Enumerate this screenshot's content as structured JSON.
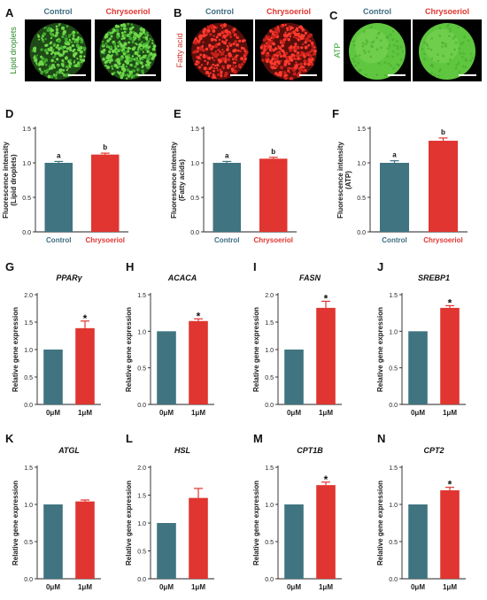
{
  "colors": {
    "control": "#3f7480",
    "treated": "#e03530",
    "lipid_text": "#2c8b2c",
    "fatty_text": "#d33a35",
    "atp_text": "#2ea02e",
    "group_blue": "#3d6d83"
  },
  "images": [
    {
      "letter": "A",
      "side_label": "Lipid droplets",
      "side_color_key": "lipid_text",
      "titles": [
        "Control",
        "Chrysoeriol"
      ],
      "stain": "green-dots"
    },
    {
      "letter": "B",
      "side_label": "Fatty acid",
      "side_color_key": "fatty_text",
      "titles": [
        "Control",
        "Chrysoeriol"
      ],
      "stain": "red-dots"
    },
    {
      "letter": "C",
      "side_label": "ATP",
      "side_color_key": "atp_text",
      "titles": [
        "Control",
        "Chrysoeriol"
      ],
      "stain": "green-smooth"
    }
  ],
  "chart_data": [
    {
      "letter": "D",
      "type": "bar",
      "ylabel": "Fluorescence intensity\n(Lipid droplets)",
      "ylim": [
        0,
        1.5
      ],
      "yticks": [
        "0.0",
        "0.5",
        "1.0",
        "1.5"
      ],
      "categories": [
        "Control",
        "Chrysoeriol"
      ],
      "values": [
        1.0,
        1.12
      ],
      "errors": [
        0.02,
        0.02
      ],
      "annotations": [
        "a",
        "b"
      ]
    },
    {
      "letter": "E",
      "type": "bar",
      "ylabel": "Fluorescence intensity\n(Fatty acids)",
      "ylim": [
        0,
        1.5
      ],
      "yticks": [
        "0.0",
        "0.5",
        "1.0",
        "1.5"
      ],
      "categories": [
        "Control",
        "Chrysoeriol"
      ],
      "values": [
        1.0,
        1.06
      ],
      "errors": [
        0.02,
        0.02
      ],
      "annotations": [
        "a",
        "b"
      ]
    },
    {
      "letter": "F",
      "type": "bar",
      "ylabel": "Fluorescence intensity\n(ATP)",
      "ylim": [
        0,
        1.5
      ],
      "yticks": [
        "0.0",
        "0.5",
        "1.0",
        "1.5"
      ],
      "categories": [
        "Control",
        "Chrysoeriol"
      ],
      "values": [
        1.0,
        1.32
      ],
      "errors": [
        0.03,
        0.04
      ],
      "annotations": [
        "a",
        "b"
      ]
    },
    {
      "letter": "G",
      "type": "bar",
      "title": "PPARγ",
      "ylabel": "Relative gene expression",
      "ylim": [
        0,
        2.0
      ],
      "yticks": [
        "0.0",
        "0.5",
        "1.0",
        "1.5",
        "2.0"
      ],
      "categories": [
        "0μM",
        "1μM"
      ],
      "values": [
        1.0,
        1.39
      ],
      "errors": [
        0,
        0.13
      ],
      "annotations": [
        "",
        "*"
      ]
    },
    {
      "letter": "H",
      "type": "bar",
      "title": "ACACA",
      "ylabel": "Relative gene expression",
      "ylim": [
        0,
        1.5
      ],
      "yticks": [
        "0.0",
        "0.5",
        "1.0",
        "1.5"
      ],
      "categories": [
        "0μM",
        "1μM"
      ],
      "values": [
        1.0,
        1.14
      ],
      "errors": [
        0,
        0.03
      ],
      "annotations": [
        "",
        "*"
      ]
    },
    {
      "letter": "I",
      "type": "bar",
      "title": "FASN",
      "ylabel": "Relative gene expression",
      "ylim": [
        0,
        2.0
      ],
      "yticks": [
        "0.0",
        "0.5",
        "1.0",
        "1.5",
        "2.0"
      ],
      "categories": [
        "0μM",
        "1μM"
      ],
      "values": [
        1.0,
        1.76
      ],
      "errors": [
        0,
        0.12
      ],
      "annotations": [
        "",
        "*"
      ]
    },
    {
      "letter": "J",
      "type": "bar",
      "title": "SREBP1",
      "ylabel": "Relative gene expression",
      "ylim": [
        0,
        1.5
      ],
      "yticks": [
        "0.0",
        "0.5",
        "1.0",
        "1.5"
      ],
      "categories": [
        "0μM",
        "1μM"
      ],
      "values": [
        1.0,
        1.32
      ],
      "errors": [
        0,
        0.03
      ],
      "annotations": [
        "",
        "*"
      ]
    },
    {
      "letter": "K",
      "type": "bar",
      "title": "ATGL",
      "ylabel": "Relative gene expression",
      "ylim": [
        0,
        1.5
      ],
      "yticks": [
        "0.0",
        "0.5",
        "1.0",
        "1.5"
      ],
      "categories": [
        "0μM",
        "1μM"
      ],
      "values": [
        1.0,
        1.04
      ],
      "errors": [
        0,
        0.02
      ],
      "annotations": [
        "",
        ""
      ]
    },
    {
      "letter": "L",
      "type": "bar",
      "title": "HSL",
      "ylabel": "Relative gene expression",
      "ylim": [
        0,
        2.0
      ],
      "yticks": [
        "0.0",
        "0.5",
        "1.0",
        "1.5",
        "2.0"
      ],
      "categories": [
        "0μM",
        "1μM"
      ],
      "values": [
        1.0,
        1.45
      ],
      "errors": [
        0,
        0.17
      ],
      "annotations": [
        "",
        ""
      ]
    },
    {
      "letter": "M",
      "type": "bar",
      "title": "CPT1B",
      "ylabel": "Relative gene expression",
      "ylim": [
        0,
        1.5
      ],
      "yticks": [
        "0.0",
        "0.5",
        "1.0",
        "1.5"
      ],
      "categories": [
        "0μM",
        "1μM"
      ],
      "values": [
        1.0,
        1.26
      ],
      "errors": [
        0,
        0.04
      ],
      "annotations": [
        "",
        "*"
      ]
    },
    {
      "letter": "N",
      "type": "bar",
      "title": "CPT2",
      "ylabel": "Relative gene expression",
      "ylim": [
        0,
        1.5
      ],
      "yticks": [
        "0.0",
        "0.5",
        "1.0",
        "1.5"
      ],
      "categories": [
        "0μM",
        "1μM"
      ],
      "values": [
        1.0,
        1.19
      ],
      "errors": [
        0,
        0.04
      ],
      "annotations": [
        "",
        "*"
      ]
    }
  ]
}
